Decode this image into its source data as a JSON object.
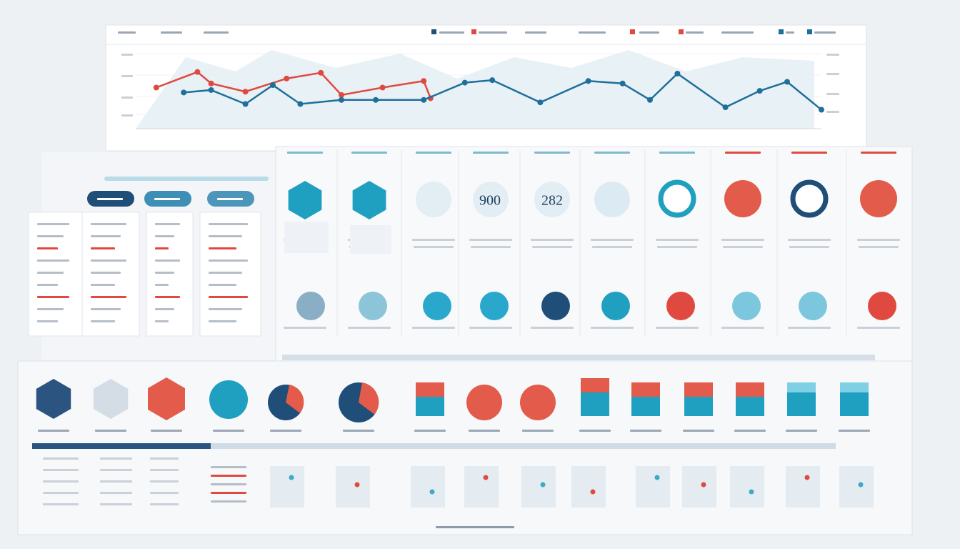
{
  "chart_data": {
    "type": "line",
    "xlim": [
      0,
      100
    ],
    "ylim": [
      0,
      100
    ],
    "series": [
      {
        "color": "#e0493f",
        "x": [
          3,
          9,
          11,
          16,
          22,
          27,
          30,
          36,
          42,
          43
        ],
        "values": [
          50,
          69,
          55,
          45,
          61,
          68,
          41,
          50,
          58,
          37
        ]
      },
      {
        "color": "#1f6f9a",
        "x": [
          7,
          11,
          16,
          20,
          24,
          30,
          35,
          42,
          48,
          52,
          59,
          66,
          71,
          75,
          79,
          86,
          91,
          95,
          100
        ],
        "values": [
          44,
          47,
          30,
          53,
          30,
          35,
          35,
          35,
          56,
          59,
          32,
          58,
          55,
          35,
          67,
          26,
          46,
          57,
          23
        ]
      }
    ]
  },
  "widgets": {
    "tile_3": "900",
    "tile_4": "282"
  }
}
